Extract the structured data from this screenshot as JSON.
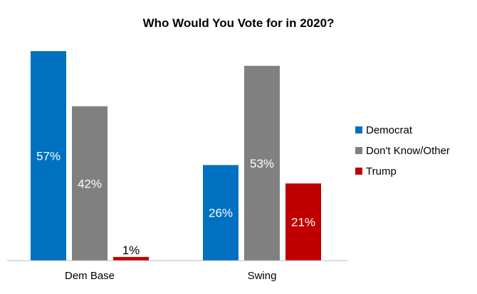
{
  "chart_data": {
    "type": "bar",
    "title": "Who Would You Vote for in 2020?",
    "categories": [
      "Dem Base",
      "Swing"
    ],
    "series": [
      {
        "name": "Democrat",
        "values": [
          57,
          26
        ],
        "labels": [
          "57%",
          "26%"
        ],
        "color": "#0070C0",
        "label_color": "#ffffff"
      },
      {
        "name": "Don't Know/Other",
        "values": [
          42,
          53
        ],
        "labels": [
          "42%",
          "53%"
        ],
        "color": "#808080",
        "label_color": "#ffffff"
      },
      {
        "name": "Trump",
        "values": [
          1,
          21
        ],
        "labels": [
          "1%",
          "21%"
        ],
        "color": "#C00000",
        "label_color": "#ffffff"
      }
    ],
    "ylim": [
      0,
      57
    ],
    "grid": false,
    "legend_position": "right"
  }
}
